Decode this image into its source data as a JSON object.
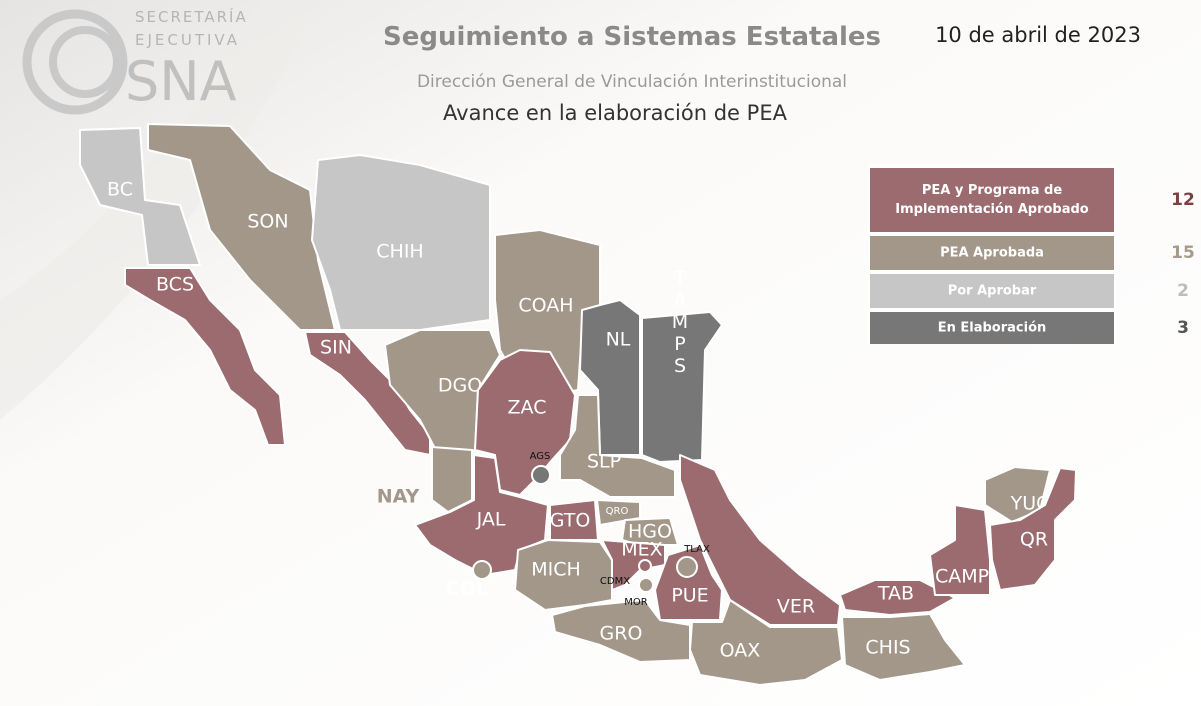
{
  "logo": {
    "line1": "SECRETARÍA",
    "line2": "EJECUTIVA",
    "acronym": "SNA"
  },
  "header": {
    "title": "Seguimiento a Sistemas Estatales",
    "subtitle": "Dirección General de Vinculación Interinstitucional",
    "heading": "Avance en la elaboración de PEA",
    "date": "10 de abril de 2023"
  },
  "legend": {
    "items": [
      {
        "label": [
          "PEA y Programa de",
          "Implementación Aprobado"
        ],
        "count": 12,
        "color": "#9b6b70",
        "count_color": "#7b3f45",
        "states": [
          "BCS",
          "SIN",
          "ZAC",
          "JAL",
          "GTO",
          "MEX",
          "CDMX",
          "PUE",
          "VER",
          "TAB",
          "CAMP",
          "QR"
        ]
      },
      {
        "label": [
          "PEA Aprobada"
        ],
        "count": 15,
        "color": "#a3978a",
        "count_color": "#a69a89",
        "states": [
          "SON",
          "COAH",
          "DGO",
          "NAY",
          "SLP",
          "QRO",
          "HGO",
          "MICH",
          "GRO",
          "OAX",
          "CHIS",
          "YUC",
          "TLAX",
          "MOR",
          "COL"
        ]
      },
      {
        "label": [
          "Por Aprobar"
        ],
        "count": 2,
        "color": "#c6c6c6",
        "count_color": "#bdbdbd",
        "states": [
          "BC",
          "CHIH"
        ]
      },
      {
        "label": [
          "En Elaboración"
        ],
        "count": 3,
        "color": "#777777",
        "count_color": "#555555",
        "states": [
          "NL",
          "TAMPS",
          "AGS"
        ]
      }
    ]
  }
}
